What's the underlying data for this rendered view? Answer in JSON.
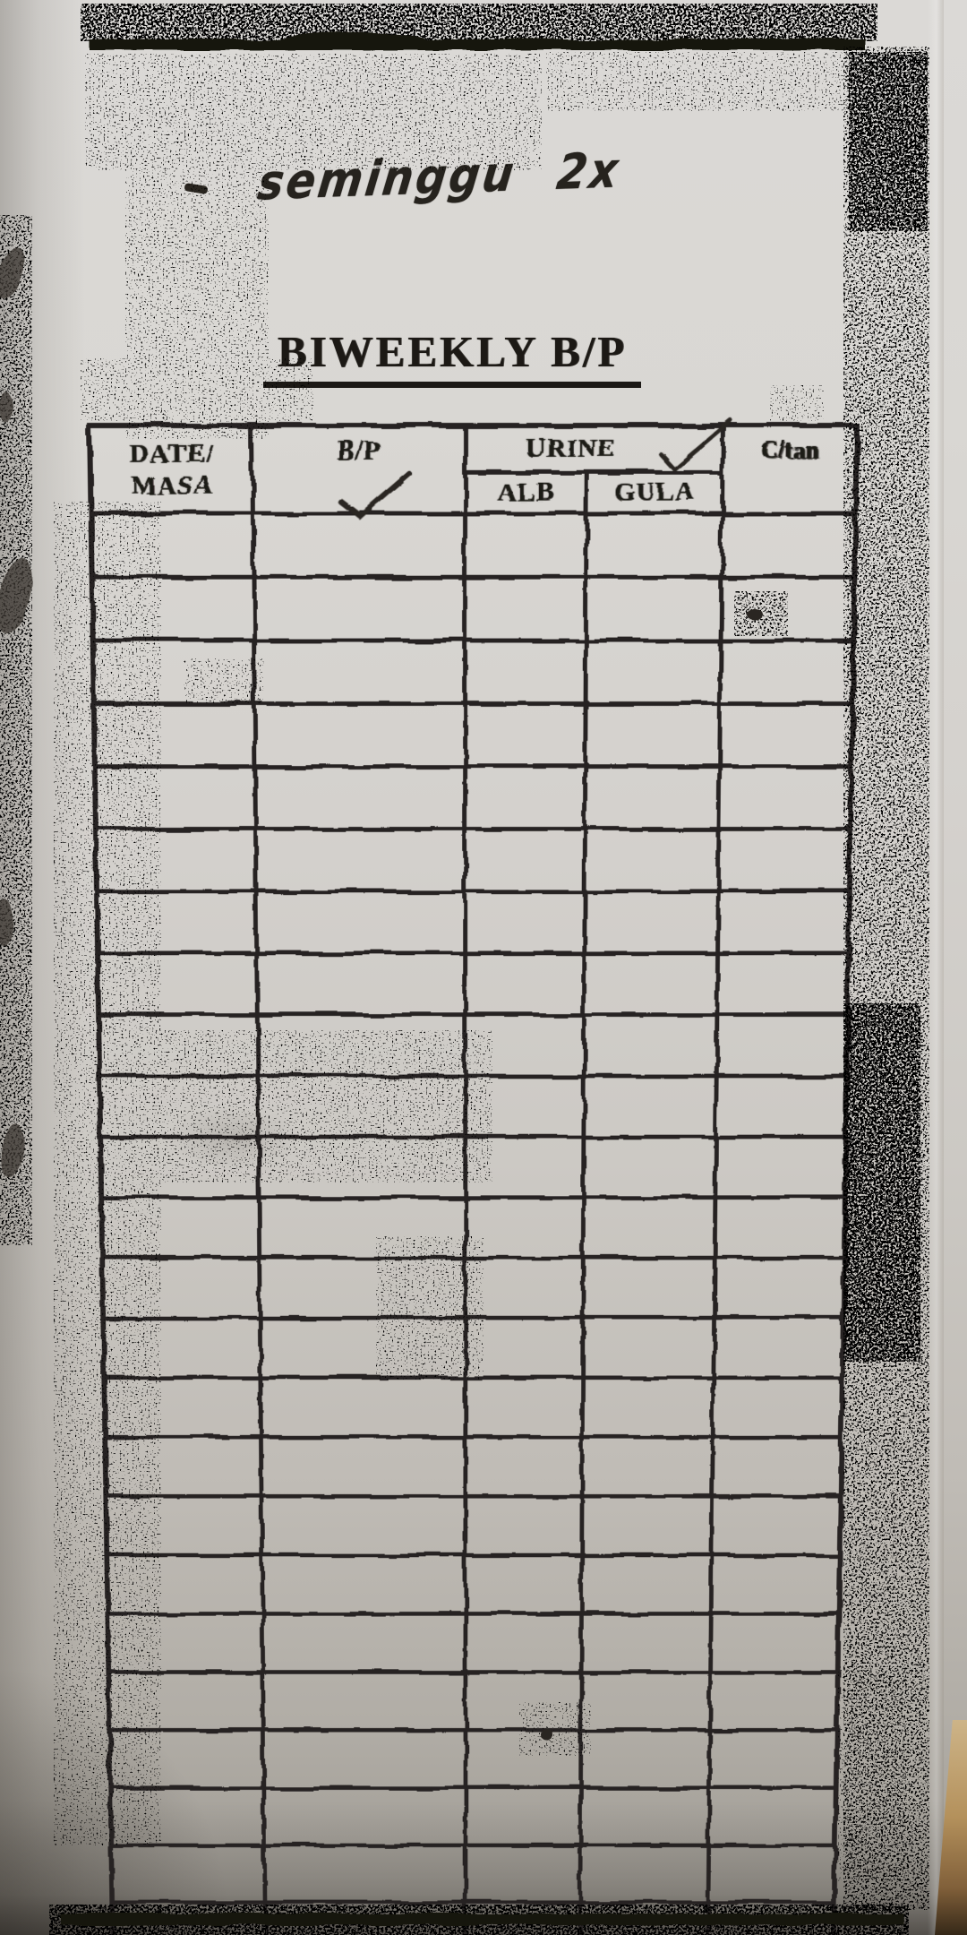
{
  "document": {
    "handwritten_note": "seminggu 2x",
    "title": "BIWEEKLY B/P"
  },
  "table": {
    "columns": [
      {
        "label": "DATE/",
        "label2": "MASA"
      },
      {
        "label": "B/P",
        "handwritten_check": true
      },
      {
        "label": "URINE",
        "handwritten_check": true,
        "subcolumns": [
          {
            "label": "ALB"
          },
          {
            "label": "GULA"
          }
        ]
      },
      {
        "label": "C/tan"
      }
    ],
    "body_row_count": 25,
    "body_cells": ""
  },
  "colors": {
    "paper": "#d8d5d1",
    "ink": "#1d1a16",
    "backdrop_surface": "#a98552"
  }
}
